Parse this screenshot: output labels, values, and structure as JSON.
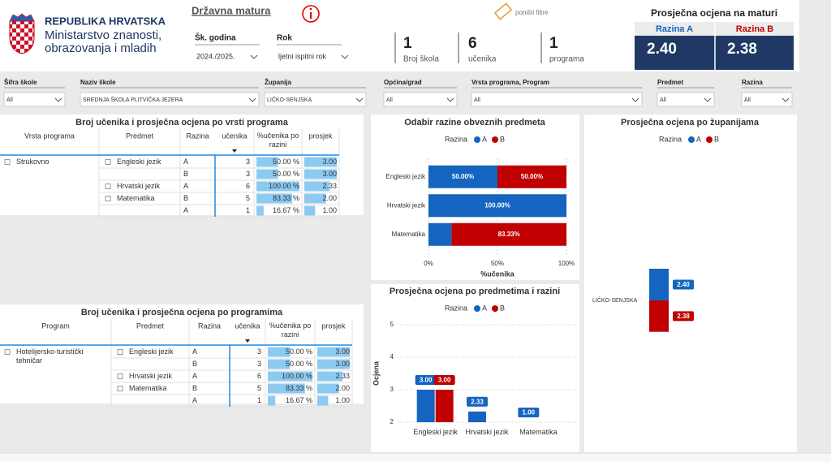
{
  "header": {
    "republic": "REPUBLIKA HRVATSKA",
    "ministry_line1": "Ministarstvo znanosti,",
    "ministry_line2": "obrazovanja i mladih",
    "title": "Državna matura",
    "reset": "poništi filtre"
  },
  "selectors": [
    {
      "label": "Šk. godina",
      "value": "2024./2025."
    },
    {
      "label": "Rok",
      "value": "ljetni ispitni rok"
    }
  ],
  "kpis": [
    {
      "value": 1,
      "label": "Broj škola"
    },
    {
      "value": 6,
      "label": "učenika"
    },
    {
      "value": 1,
      "label": "programa"
    }
  ],
  "average": {
    "title": "Prosječna ocjena na maturi",
    "items": [
      {
        "label": "Razina A",
        "value": "2.40",
        "color": "#1565c0"
      },
      {
        "label": "Razina B",
        "value": "2.38",
        "color": "#c00000"
      }
    ]
  },
  "filters": [
    {
      "label": "Šifra škole",
      "value": "All"
    },
    {
      "label": "Naziv škole",
      "value": "SREDNJA ŠKOLA PLITVIČKA JEZERA"
    },
    {
      "label": "Županija",
      "value": "LIČKO-SENJSKA"
    },
    {
      "label": "Općina/grad",
      "value": "All"
    },
    {
      "label": "Vrsta programa, Program",
      "value": "All"
    },
    {
      "label": "Predmet",
      "value": "All"
    },
    {
      "label": "Razina",
      "value": "All"
    }
  ],
  "tables": [
    {
      "title": "Broj učenika i prosječna ocjena po vrsti programa",
      "columns": [
        "Vrsta programa",
        "Predmet",
        "Razina",
        "učenika",
        "%učenika po razini",
        "prosjek"
      ],
      "rows": [
        {
          "group": "Strukovno",
          "subject": "Engleski jezik",
          "level": "A",
          "count": 3,
          "pct": 50,
          "pct_label": "50.00 %",
          "avg": 3,
          "avg_label": "3.00"
        },
        {
          "group": null,
          "subject": null,
          "level": "B",
          "count": 3,
          "pct": 50,
          "pct_label": "50.00 %",
          "avg": 3,
          "avg_label": "3.00"
        },
        {
          "group": null,
          "subject": "Hrvatski jezik",
          "level": "A",
          "count": 6,
          "pct": 100,
          "pct_label": "100.00 %",
          "avg": 2.33,
          "avg_label": "2.33"
        },
        {
          "group": null,
          "subject": "Matematika",
          "level": "B",
          "count": 5,
          "pct": 83.33,
          "pct_label": "83.33 %",
          "avg": 2,
          "avg_label": "2.00"
        },
        {
          "group": null,
          "subject": null,
          "level": "A",
          "count": 1,
          "pct": 16.67,
          "pct_label": "16.67 %",
          "avg": 1,
          "avg_label": "1.00"
        }
      ]
    },
    {
      "title": "Broj učenika i prosječna ocjena po programima",
      "columns": [
        "Program",
        "Predmet",
        "Razina",
        "učenika",
        "%učenika po razini",
        "prosjek"
      ],
      "rows": [
        {
          "group": "Hotelijersko-turistički tehničar",
          "subject": "Engleski jezik",
          "level": "A",
          "count": 3,
          "pct": 50,
          "pct_label": "50.00 %",
          "avg": 3,
          "avg_label": "3.00"
        },
        {
          "group": null,
          "subject": null,
          "level": "B",
          "count": 3,
          "pct": 50,
          "pct_label": "50.00 %",
          "avg": 3,
          "avg_label": "3.00"
        },
        {
          "group": null,
          "subject": "Hrvatski jezik",
          "level": "A",
          "count": 6,
          "pct": 100,
          "pct_label": "100.00 %",
          "avg": 2.33,
          "avg_label": "2.33"
        },
        {
          "group": null,
          "subject": "Matematika",
          "level": "B",
          "count": 5,
          "pct": 83.33,
          "pct_label": "83.33 %",
          "avg": 2,
          "avg_label": "2.00"
        },
        {
          "group": null,
          "subject": null,
          "level": "A",
          "count": 1,
          "pct": 16.67,
          "pct_label": "16.67 %",
          "avg": 1,
          "avg_label": "1.00"
        }
      ]
    }
  ],
  "charts": [
    {
      "type": "bar",
      "orientation": "horizontal",
      "stacked": true,
      "title": "Odabir razine obveznih predmeta",
      "legend_title": "Razina",
      "categories": [
        "Engleski jezik",
        "Hrvatski jezik",
        "Matematika"
      ],
      "series": [
        {
          "name": "A",
          "color": "#1565c0",
          "values": [
            50,
            100,
            16.67
          ],
          "value_labels": [
            "50.00%",
            "100.00%",
            null
          ]
        },
        {
          "name": "B",
          "color": "#c00000",
          "values": [
            50,
            null,
            83.33
          ],
          "value_labels": [
            "50.00%",
            null,
            "83.33%"
          ]
        }
      ],
      "xlim": [
        0,
        100
      ],
      "xticks": [
        {
          "value": 0,
          "label": "0%"
        },
        {
          "value": 50,
          "label": "50%"
        },
        {
          "value": 100,
          "label": "100%"
        }
      ],
      "xlabel": "%učenika",
      "grid": true
    },
    {
      "type": "bar",
      "orientation": "vertical",
      "stacked": false,
      "title": "Prosječna ocjena po predmetima i razini",
      "legend_title": "Razina",
      "categories": [
        "Engleski jezik",
        "Hrvatski jezik",
        "Matematika"
      ],
      "series": [
        {
          "name": "A",
          "color": "#1565c0",
          "values": [
            3,
            2.33,
            1
          ],
          "value_labels": [
            "3.00",
            "2.33",
            "1.00"
          ]
        },
        {
          "name": "B",
          "color": "#c00000",
          "values": [
            3,
            null,
            null
          ],
          "value_labels": [
            "3.00",
            null,
            null
          ]
        }
      ],
      "ylim": [
        2,
        5
      ],
      "yticks": [
        2,
        3,
        4,
        5
      ],
      "ylabel": "Ocjena",
      "grid": true
    },
    {
      "type": "bar",
      "orientation": "mirrored",
      "stacked": false,
      "title": "Prosječna ocjena po županijama",
      "legend_title": "Razina",
      "categories": [
        "LIČKO-SENJSKA"
      ],
      "series": [
        {
          "name": "A",
          "color": "#1565c0",
          "values": [
            2.4
          ],
          "value_labels": [
            "2.40"
          ]
        },
        {
          "name": "B",
          "color": "#c00000",
          "values": [
            2.38
          ],
          "value_labels": [
            "2.38"
          ]
        }
      ]
    }
  ]
}
